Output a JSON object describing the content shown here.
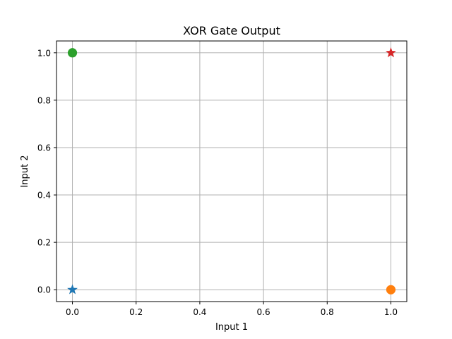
{
  "chart_data": {
    "type": "scatter",
    "title": "XOR Gate Output",
    "xlabel": "Input 1",
    "ylabel": "Input 2",
    "xlim": [
      -0.05,
      1.05
    ],
    "ylim": [
      -0.05,
      1.05
    ],
    "xticks": [
      "0.0",
      "0.2",
      "0.4",
      "0.6",
      "0.8",
      "1.0"
    ],
    "yticks": [
      "0.0",
      "0.2",
      "0.4",
      "0.6",
      "0.8",
      "1.0"
    ],
    "grid": true,
    "points": [
      {
        "x": 0,
        "y": 0,
        "marker": "star",
        "color": "#1f77b4"
      },
      {
        "x": 1,
        "y": 0,
        "marker": "circle",
        "color": "#ff7f0e"
      },
      {
        "x": 0,
        "y": 1,
        "marker": "circle",
        "color": "#2ca02c"
      },
      {
        "x": 1,
        "y": 1,
        "marker": "star",
        "color": "#d62728"
      }
    ]
  }
}
